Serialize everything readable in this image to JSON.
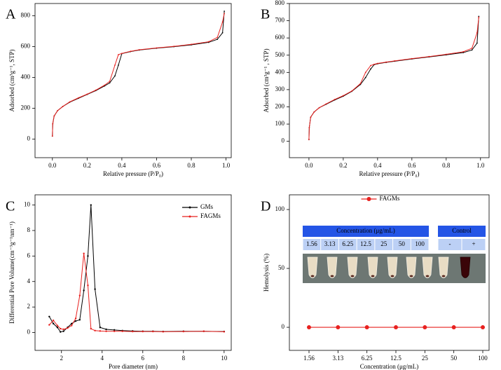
{
  "chart_data": [
    {
      "type": "line",
      "label": "A",
      "x_label": "Relative pressure (P/P₀)",
      "y_label": "Adsorbed (cm³g⁻¹, STP)",
      "x": [
        0,
        0.002,
        0.01,
        0.03,
        0.06,
        0.1,
        0.15,
        0.2,
        0.25,
        0.3,
        0.33,
        0.36,
        0.38,
        0.4,
        0.45,
        0.5,
        0.6,
        0.7,
        0.8,
        0.9,
        0.95,
        0.98,
        0.99
      ],
      "series": [
        {
          "color": "#000000",
          "values": [
            20,
            100,
            150,
            185,
            212,
            240,
            265,
            290,
            315,
            345,
            365,
            410,
            480,
            555,
            568,
            578,
            590,
            600,
            612,
            628,
            648,
            690,
            830
          ]
        },
        {
          "color": "#e8211f",
          "values": [
            20,
            100,
            150,
            185,
            212,
            242,
            268,
            292,
            318,
            350,
            375,
            480,
            548,
            556,
            570,
            580,
            592,
            602,
            615,
            632,
            660,
            760,
            815
          ]
        }
      ],
      "xlim": [
        -0.1,
        1.03
      ],
      "ylim": [
        -120,
        880
      ],
      "xticks": [
        {
          "value": 0,
          "label": "0.0"
        },
        0.2,
        0.4,
        0.6,
        0.8,
        {
          "value": 1,
          "label": "1.0"
        }
      ],
      "yticks": [
        0,
        200,
        400,
        600,
        800
      ]
    },
    {
      "type": "line",
      "label": "B",
      "x_label": "Relative pressure (P/P₀)",
      "y_label": "Adsorbed (cm³g⁻¹ , STP)",
      "x": [
        0,
        0.002,
        0.01,
        0.03,
        0.06,
        0.1,
        0.15,
        0.2,
        0.25,
        0.3,
        0.33,
        0.36,
        0.38,
        0.4,
        0.45,
        0.5,
        0.6,
        0.7,
        0.8,
        0.9,
        0.95,
        0.98,
        0.99
      ],
      "series": [
        {
          "color": "#000000",
          "values": [
            10,
            80,
            140,
            170,
            195,
            215,
            240,
            262,
            290,
            330,
            370,
            420,
            445,
            450,
            458,
            465,
            478,
            490,
            502,
            515,
            530,
            570,
            725
          ]
        },
        {
          "color": "#e8211f",
          "values": [
            10,
            80,
            140,
            170,
            195,
            217,
            243,
            265,
            292,
            335,
            400,
            440,
            447,
            452,
            460,
            467,
            480,
            492,
            505,
            520,
            540,
            630,
            720
          ]
        }
      ],
      "xlim": [
        -0.114,
        1.05
      ],
      "ylim": [
        -95,
        800
      ],
      "xticks": [
        {
          "value": 0,
          "label": "0.0"
        },
        0.2,
        0.4,
        0.6,
        0.8,
        {
          "value": 1,
          "label": "1.0"
        }
      ],
      "yticks": [
        0,
        100,
        200,
        300,
        400,
        500,
        600,
        700,
        800
      ]
    },
    {
      "type": "line",
      "label": "C",
      "x_label": "Pore diameter (nm)",
      "y_label": "Differential Pore Volume(cm⁻³g⁻¹nm⁻¹)",
      "x": [
        1.4,
        1.6,
        1.8,
        1.95,
        2.1,
        2.3,
        2.5,
        2.7,
        2.9,
        3.1,
        3.3,
        3.45,
        3.65,
        3.9,
        4.2,
        4.6,
        5,
        5.5,
        6,
        6.5,
        7,
        8,
        9,
        10
      ],
      "series": [
        {
          "name": "GMs",
          "color": "#000000",
          "values": [
            1.25,
            0.7,
            0.4,
            0.05,
            0.1,
            0.4,
            0.7,
            0.9,
            1.0,
            3.3,
            6.0,
            10.0,
            3.4,
            0.4,
            0.25,
            0.2,
            0.15,
            0.12,
            0.1,
            0.1,
            0.08,
            0.1,
            0.1,
            0.08
          ]
        },
        {
          "name": "FAGMs",
          "color": "#e8211f",
          "values": [
            0.6,
            0.95,
            0.55,
            0.3,
            0.25,
            0.35,
            0.55,
            1.1,
            2.9,
            6.2,
            3.7,
            0.3,
            0.15,
            0.12,
            0.1,
            0.1,
            0.1,
            0.08,
            0.08,
            0.08,
            0.06,
            0.08,
            0.1,
            0.06
          ]
        }
      ],
      "xlim": [
        0.7,
        10.35
      ],
      "ylim": [
        -1.4,
        10.8
      ],
      "xticks": [
        2,
        4,
        6,
        8,
        10
      ],
      "yticks": [
        0,
        2,
        4,
        6,
        8,
        10
      ],
      "legend": "upper right"
    },
    {
      "type": "line",
      "label": "D",
      "x_label": "Concentration (μg/mL)",
      "y_label": "Hemolysis (%)",
      "categories": [
        "1.56",
        "3.13",
        "6.25",
        "12.5",
        "25",
        "50",
        "100"
      ],
      "series": [
        {
          "name": "FAGMs",
          "color": "#e8211f",
          "values": [
            0,
            0,
            0,
            0,
            0,
            0,
            0
          ]
        }
      ],
      "ylim": [
        -19.6,
        112.5
      ],
      "yticks": [
        0,
        50,
        100
      ],
      "legend": "upper center",
      "inset": {
        "header": "Concentration (μg/mL)",
        "control": "Control",
        "concentrations": [
          "1.56",
          "3.13",
          "6.25",
          "12.5",
          "25",
          "50",
          "100"
        ],
        "controls": [
          "-",
          "+"
        ]
      }
    }
  ]
}
